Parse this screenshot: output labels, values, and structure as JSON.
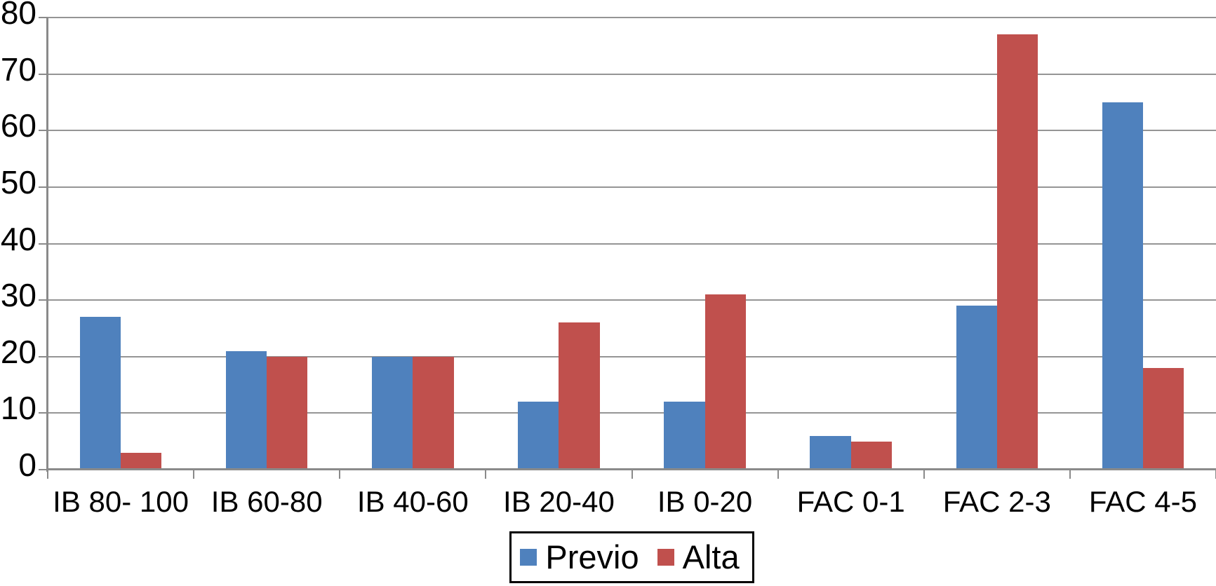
{
  "chart_data": {
    "type": "bar",
    "title": "",
    "xlabel": "",
    "ylabel": "",
    "categories": [
      "IB 80- 100",
      "IB 60-80",
      "IB 40-60",
      "IB 20-40",
      "IB 0-20",
      "FAC 0-1",
      "FAC 2-3",
      "FAC 4-5"
    ],
    "series": [
      {
        "name": "Previo",
        "color": "#4F81BD",
        "values": [
          27,
          21,
          20,
          12,
          12,
          6,
          29,
          65
        ]
      },
      {
        "name": "Alta",
        "color": "#C0504D",
        "values": [
          3,
          20,
          20,
          26,
          31,
          5,
          77,
          18
        ]
      }
    ],
    "ylim": [
      0,
      80
    ],
    "yticks": [
      0,
      10,
      20,
      30,
      40,
      50,
      60,
      70,
      80
    ],
    "grid": true,
    "legend_position": "bottom-center",
    "colors": {
      "gridline": "#959595",
      "axis": "#8A8A8A",
      "background": "#FFFFFF",
      "text": "#000000",
      "legend_border": "#000000"
    }
  }
}
